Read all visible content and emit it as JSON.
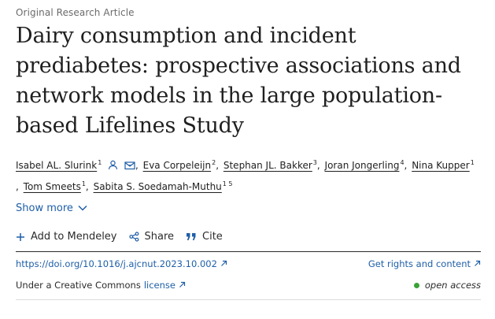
{
  "article_type": "Original Research Article",
  "title": "Dairy consumption and incident prediabetes: prospective associations and network models in the large population-based Lifelines Study",
  "authors": [
    {
      "name": "Isabel AL. Slurink",
      "sup": "1"
    },
    {
      "name": "Eva Corpeleijn",
      "sup": "2"
    },
    {
      "name": "Stephan JL. Bakker",
      "sup": "3"
    },
    {
      "name": "Joran Jongerling",
      "sup": "4"
    },
    {
      "name": "Nina Kupper",
      "sup": "1"
    },
    {
      "name": "Tom Smeets",
      "sup": "1"
    },
    {
      "name": "Sabita S. Soedamah-Muthu",
      "sup": "1 5"
    }
  ],
  "show_more_label": "Show more",
  "actions": {
    "add_to_mendeley": "Add to Mendeley",
    "share": "Share",
    "cite": "Cite"
  },
  "doi": "https://doi.org/10.1016/j.ajcnut.2023.10.002",
  "rights_label": "Get rights and content",
  "license": {
    "prefix": "Under a Creative Commons",
    "link": "license"
  },
  "open_access_label": "open access",
  "colors": {
    "link": "#1f5fa8",
    "open_access_dot": "#3aa336"
  },
  "icons": [
    "person-icon",
    "envelope-icon",
    "plus-icon",
    "share-icon",
    "quote-icon",
    "chevron-down-icon",
    "external-link-icon"
  ]
}
